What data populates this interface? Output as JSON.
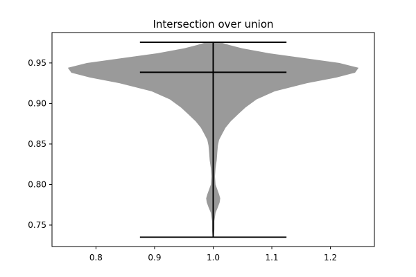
{
  "chart_data": {
    "type": "violin",
    "title": "Intersection over union",
    "xlabel": "",
    "ylabel": "",
    "xlim": [
      0.725,
      1.275
    ],
    "ylim": [
      0.7235,
      0.9875
    ],
    "x_ticks": [
      0.8,
      0.9,
      1.0,
      1.1,
      1.2
    ],
    "x_tick_labels": [
      "0.8",
      "0.9",
      "1.0",
      "1.1",
      "1.2"
    ],
    "y_ticks": [
      0.75,
      0.8,
      0.85,
      0.9,
      0.95
    ],
    "y_tick_labels": [
      "0.75",
      "0.80",
      "0.85",
      "0.90",
      "0.95"
    ],
    "grid": false,
    "legend": "none",
    "colors": {
      "violin_fill": "#9a9a9a",
      "lines": "#000000"
    },
    "violins": [
      {
        "position": 1.0,
        "min": 0.735,
        "max": 0.9755,
        "mean": 0.9385,
        "whisker_half_width": 0.125,
        "profile": [
          [
            0.7355,
            0.001
          ],
          [
            0.745,
            0.002
          ],
          [
            0.755,
            0.002
          ],
          [
            0.765,
            0.004
          ],
          [
            0.772,
            0.008
          ],
          [
            0.778,
            0.011
          ],
          [
            0.783,
            0.012
          ],
          [
            0.788,
            0.01
          ],
          [
            0.794,
            0.007
          ],
          [
            0.8,
            0.004
          ],
          [
            0.81,
            0.003
          ],
          [
            0.82,
            0.004
          ],
          [
            0.83,
            0.006
          ],
          [
            0.84,
            0.007
          ],
          [
            0.848,
            0.008
          ],
          [
            0.855,
            0.01
          ],
          [
            0.862,
            0.015
          ],
          [
            0.87,
            0.021
          ],
          [
            0.878,
            0.03
          ],
          [
            0.887,
            0.043
          ],
          [
            0.895,
            0.055
          ],
          [
            0.905,
            0.074
          ],
          [
            0.915,
            0.105
          ],
          [
            0.925,
            0.16
          ],
          [
            0.932,
            0.21
          ],
          [
            0.938,
            0.242
          ],
          [
            0.944,
            0.248
          ],
          [
            0.95,
            0.215
          ],
          [
            0.956,
            0.155
          ],
          [
            0.962,
            0.095
          ],
          [
            0.968,
            0.05
          ],
          [
            0.972,
            0.028
          ],
          [
            0.9755,
            0.012
          ]
        ]
      }
    ]
  }
}
